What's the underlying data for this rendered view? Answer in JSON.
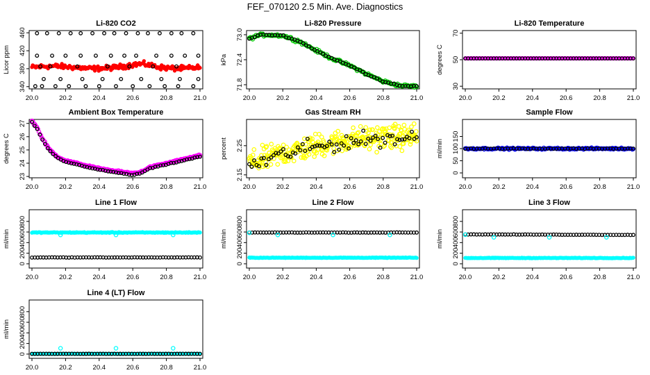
{
  "figure": {
    "title": "FEF_070120  2.5 Min. Ave. Diagnostics"
  },
  "colors": {
    "red": "#ff0000",
    "green": "#00cc00",
    "magenta": "#ff00ff",
    "yellow": "#ffff00",
    "blue": "#0000ff",
    "cyan": "#00ffff",
    "black": "#000000"
  },
  "chart_data": [
    {
      "id": "li820-co2",
      "type": "scatter",
      "title": "Li-820 CO2",
      "ylabel": "Licor ppm",
      "xlim": [
        20.0,
        21.0
      ],
      "ylim": [
        335,
        465
      ],
      "xticks": [
        "20.0",
        "20.2",
        "20.4",
        "20.6",
        "20.8",
        "21.0"
      ],
      "yticks": [
        {
          "v": 340,
          "label": "340"
        },
        {
          "v": 380,
          "label": "380"
        },
        {
          "v": 420,
          "label": "420"
        },
        {
          "v": 460,
          "label": "460"
        }
      ],
      "series": [
        {
          "name": "raw",
          "kind": "band",
          "color": "red",
          "y_start": 383,
          "y_end": 383,
          "wave": 2.5,
          "noise": 4,
          "n": 220,
          "size": 2.4,
          "fill": true,
          "extra_hump": {
            "center": 0.65,
            "width": 0.08,
            "height": 5
          }
        },
        {
          "name": "avg",
          "kind": "scatter",
          "color": "black",
          "size": 2.3,
          "fill": false,
          "x": [
            20.03,
            20.09,
            20.16,
            20.23,
            20.29,
            20.36,
            20.43,
            20.49,
            20.56,
            20.63,
            20.69,
            20.76,
            20.83,
            20.89,
            20.96,
            20.03,
            20.12,
            20.2,
            20.29,
            20.38,
            20.47,
            20.55,
            20.62,
            20.74,
            20.83,
            20.91,
            20.99,
            20.02,
            20.06,
            20.14,
            20.22,
            20.32,
            20.4,
            20.5,
            20.6,
            20.7,
            20.79,
            20.87,
            20.96,
            20.07,
            20.17,
            20.3,
            20.42,
            20.53,
            20.65,
            20.77,
            20.88,
            20.99,
            20.05,
            20.11,
            20.27,
            20.45,
            20.58,
            20.72,
            20.86
          ],
          "y": [
            459,
            459,
            459,
            459,
            459,
            459,
            459,
            459,
            459,
            459,
            459,
            459,
            459,
            459,
            459,
            409,
            409,
            409,
            409,
            409,
            409,
            409,
            409,
            409,
            409,
            409,
            409,
            341,
            341,
            341,
            341,
            341,
            341,
            341,
            341,
            341,
            341,
            341,
            341,
            357,
            357,
            357,
            357,
            357,
            357,
            357,
            357,
            357,
            385,
            385,
            385,
            385,
            385,
            385,
            385
          ]
        }
      ]
    },
    {
      "id": "li820-pressure",
      "type": "scatter",
      "title": "Li-820 Pressure",
      "ylabel": "kPa",
      "xlim": [
        20.0,
        21.0
      ],
      "ylim": [
        71.7,
        73.1
      ],
      "xticks": [
        "20.0",
        "20.2",
        "20.4",
        "20.6",
        "20.8",
        "21.0"
      ],
      "yticks": [
        {
          "v": 71.8,
          "label": "71.8"
        },
        {
          "v": 72.4,
          "label": "72.4"
        },
        {
          "v": 73.0,
          "label": "73.0"
        }
      ],
      "series": [
        {
          "name": "raw",
          "kind": "curve",
          "color": "green",
          "size": 2.6,
          "fill": false,
          "noise": 0.025,
          "n": 150,
          "kx": [
            20.0,
            20.05,
            20.1,
            20.2,
            20.3,
            20.4,
            20.5,
            20.6,
            20.7,
            20.8,
            20.9,
            21.0
          ],
          "ky": [
            72.9,
            72.98,
            73.0,
            72.98,
            72.84,
            72.62,
            72.42,
            72.26,
            72.06,
            71.88,
            71.78,
            71.76
          ]
        },
        {
          "name": "avg",
          "kind": "curve",
          "color": "black",
          "size": 2.3,
          "fill": false,
          "noise": 0.01,
          "n": 60,
          "kx": [
            20.0,
            20.05,
            20.1,
            20.2,
            20.3,
            20.4,
            20.5,
            20.6,
            20.7,
            20.8,
            20.9,
            21.0
          ],
          "ky": [
            72.9,
            72.98,
            73.0,
            72.98,
            72.84,
            72.62,
            72.42,
            72.26,
            72.06,
            71.88,
            71.78,
            71.76
          ]
        }
      ]
    },
    {
      "id": "li820-temperature",
      "type": "scatter",
      "title": "Li-820 Temperature",
      "ylabel": "degrees C",
      "xlim": [
        20.0,
        21.0
      ],
      "ylim": [
        28,
        72
      ],
      "xticks": [
        "20.0",
        "20.2",
        "20.4",
        "20.6",
        "20.8",
        "21.0"
      ],
      "yticks": [
        {
          "v": 30,
          "label": "30"
        },
        {
          "v": 50,
          "label": "50"
        },
        {
          "v": 70,
          "label": "70"
        }
      ],
      "series": [
        {
          "name": "raw",
          "kind": "band",
          "color": "magenta",
          "y_start": 51,
          "y_end": 51,
          "wave": 0,
          "noise": 0,
          "n": 150,
          "size": 2.4,
          "fill": false
        },
        {
          "name": "avg",
          "kind": "band",
          "color": "black",
          "y_start": 51,
          "y_end": 51,
          "wave": 0,
          "noise": 0,
          "n": 60,
          "size": 2.2,
          "fill": false
        }
      ]
    },
    {
      "id": "ambient-box-temperature",
      "type": "scatter",
      "title": "Ambient Box Temperature",
      "ylabel": "degrees C",
      "xlim": [
        20.0,
        21.0
      ],
      "ylim": [
        22.9,
        27.3
      ],
      "xticks": [
        "20.0",
        "20.2",
        "20.4",
        "20.6",
        "20.8",
        "21.0"
      ],
      "yticks": [
        {
          "v": 23,
          "label": "23"
        },
        {
          "v": 24,
          "label": "24"
        },
        {
          "v": 25,
          "label": "25"
        },
        {
          "v": 26,
          "label": "26"
        },
        {
          "v": 27,
          "label": "27"
        }
      ],
      "series": [
        {
          "name": "raw",
          "kind": "curve",
          "color": "magenta",
          "size": 2.6,
          "fill": false,
          "noise": 0.04,
          "n": 170,
          "kx": [
            20.0,
            20.03,
            20.06,
            20.1,
            20.15,
            20.2,
            20.3,
            20.4,
            20.5,
            20.6,
            20.65,
            20.7,
            20.8,
            20.9,
            21.0
          ],
          "ky": [
            27.2,
            26.7,
            25.9,
            25.1,
            24.5,
            24.2,
            23.9,
            23.6,
            23.4,
            23.25,
            23.35,
            23.7,
            24.0,
            24.3,
            24.6
          ]
        },
        {
          "name": "avg",
          "kind": "curve",
          "color": "black",
          "size": 2.3,
          "fill": false,
          "noise": 0.02,
          "n": 65,
          "kx": [
            20.0,
            20.03,
            20.06,
            20.1,
            20.15,
            20.2,
            20.3,
            20.4,
            20.5,
            20.6,
            20.65,
            20.7,
            20.8,
            20.9,
            21.0
          ],
          "ky": [
            27.1,
            26.6,
            25.8,
            25.0,
            24.4,
            24.1,
            23.8,
            23.5,
            23.3,
            23.1,
            23.25,
            23.6,
            23.9,
            24.2,
            24.5
          ]
        }
      ]
    },
    {
      "id": "gas-stream-rh",
      "type": "scatter",
      "title": "Gas Stream RH",
      "ylabel": "percent",
      "xlim": [
        20.0,
        21.0
      ],
      "ylim": [
        2.14,
        2.34
      ],
      "xticks": [
        "20.0",
        "20.2",
        "20.4",
        "20.6",
        "20.8",
        "21.0"
      ],
      "yticks": [
        {
          "v": 2.15,
          "label": "2.15"
        },
        {
          "v": 2.25,
          "label": "2.25"
        }
      ],
      "series": [
        {
          "name": "raw",
          "kind": "curve",
          "color": "yellow",
          "size": 2.7,
          "fill": false,
          "noise": 0.03,
          "n": 320,
          "kx": [
            20.0,
            20.1,
            20.2,
            20.3,
            20.4,
            20.5,
            20.6,
            20.7,
            20.8,
            20.9,
            21.0
          ],
          "ky": [
            2.19,
            2.205,
            2.225,
            2.235,
            2.25,
            2.26,
            2.27,
            2.275,
            2.28,
            2.28,
            2.285
          ]
        },
        {
          "name": "avg",
          "kind": "curve",
          "color": "black",
          "size": 2.3,
          "fill": false,
          "noise": 0.02,
          "n": 70,
          "kx": [
            20.0,
            20.1,
            20.2,
            20.3,
            20.4,
            20.5,
            20.6,
            20.7,
            20.8,
            20.9,
            21.0
          ],
          "ky": [
            2.18,
            2.2,
            2.22,
            2.235,
            2.245,
            2.255,
            2.265,
            2.27,
            2.275,
            2.275,
            2.28
          ]
        }
      ]
    },
    {
      "id": "sample-flow",
      "type": "scatter",
      "title": "Sample Flow",
      "ylabel": "ml/min",
      "xlim": [
        20.0,
        21.0
      ],
      "ylim": [
        -20,
        220
      ],
      "xticks": [
        "20.0",
        "20.2",
        "20.4",
        "20.6",
        "20.8",
        "21.0"
      ],
      "yticks": [
        {
          "v": 0,
          "label": "0"
        },
        {
          "v": 50,
          "label": "50"
        },
        {
          "v": 100,
          "label": "100"
        },
        {
          "v": 150,
          "label": "150"
        }
      ],
      "series": [
        {
          "name": "raw",
          "kind": "band",
          "color": "blue",
          "y_start": 100,
          "y_end": 100,
          "wave": 0,
          "noise": 2.5,
          "n": 170,
          "size": 2.5,
          "fill": false
        },
        {
          "name": "avg",
          "kind": "band",
          "color": "black",
          "y_start": 100,
          "y_end": 100,
          "wave": 0,
          "noise": 1,
          "n": 60,
          "size": 2.2,
          "fill": false
        }
      ]
    },
    {
      "id": "line1-flow",
      "type": "scatter",
      "title": "Line 1 Flow",
      "ylabel": "ml/min",
      "xlim": [
        20.0,
        21.0
      ],
      "ylim": [
        -80,
        1020
      ],
      "xticks": [
        "20.0",
        "20.2",
        "20.4",
        "20.6",
        "20.8",
        "21.0"
      ],
      "yticks": [
        {
          "v": 0,
          "label": "0"
        },
        {
          "v": 200,
          "label": "200"
        },
        {
          "v": 400,
          "label": "400"
        },
        {
          "v": 600,
          "label": "600"
        },
        {
          "v": 800,
          "label": "800"
        }
      ],
      "series": [
        {
          "name": "raw-high",
          "kind": "band",
          "color": "cyan",
          "y_start": 590,
          "y_end": 590,
          "wave": 0,
          "noise": 6,
          "n": 200,
          "size": 2.5,
          "fill": true
        },
        {
          "name": "dips",
          "kind": "scatter",
          "color": "cyan",
          "size": 2.6,
          "fill": false,
          "x": [
            20.17,
            20.5,
            20.84
          ],
          "y": [
            545,
            545,
            545
          ]
        },
        {
          "name": "avg-low",
          "kind": "band",
          "color": "black",
          "y_start": 120,
          "y_end": 120,
          "wave": 0,
          "noise": 2,
          "n": 60,
          "size": 2.3,
          "fill": false
        }
      ]
    },
    {
      "id": "line2-flow",
      "type": "scatter",
      "title": "Line 2 Flow",
      "ylabel": "ml/min",
      "xlim": [
        20.0,
        21.0
      ],
      "ylim": [
        -80,
        1020
      ],
      "xticks": [
        "20.0",
        "20.2",
        "20.4",
        "20.6",
        "20.8",
        "21.0"
      ],
      "yticks": [
        {
          "v": 0,
          "label": "0"
        },
        {
          "v": 200,
          "label": "200"
        },
        {
          "v": 400,
          "label": "400"
        },
        {
          "v": 600,
          "label": "600"
        },
        {
          "v": 800,
          "label": "800"
        }
      ],
      "series": [
        {
          "name": "raw-low",
          "kind": "band",
          "color": "cyan",
          "y_start": 115,
          "y_end": 115,
          "wave": 0,
          "noise": 4,
          "n": 200,
          "size": 2.5,
          "fill": true
        },
        {
          "name": "avg-high",
          "kind": "band",
          "color": "black",
          "y_start": 590,
          "y_end": 590,
          "wave": 0,
          "noise": 2,
          "n": 60,
          "size": 2.3,
          "fill": false
        },
        {
          "name": "dips",
          "kind": "scatter",
          "color": "cyan",
          "size": 2.6,
          "fill": false,
          "x": [
            20.0,
            20.17,
            20.5,
            20.84
          ],
          "y": [
            585,
            545,
            545,
            545
          ]
        }
      ]
    },
    {
      "id": "line3-flow",
      "type": "scatter",
      "title": "Line 3 Flow",
      "ylabel": "ml/min",
      "xlim": [
        20.0,
        21.0
      ],
      "ylim": [
        -80,
        1020
      ],
      "xticks": [
        "20.0",
        "20.2",
        "20.4",
        "20.6",
        "20.8",
        "21.0"
      ],
      "yticks": [
        {
          "v": 0,
          "label": "0"
        },
        {
          "v": 200,
          "label": "200"
        },
        {
          "v": 400,
          "label": "400"
        },
        {
          "v": 600,
          "label": "600"
        },
        {
          "v": 800,
          "label": "800"
        }
      ],
      "series": [
        {
          "name": "raw-low",
          "kind": "band",
          "color": "cyan",
          "y_start": 110,
          "y_end": 110,
          "wave": 0,
          "noise": 4,
          "n": 200,
          "size": 2.5,
          "fill": true
        },
        {
          "name": "avg-high",
          "kind": "band",
          "color": "black",
          "y_start": 555,
          "y_end": 545,
          "wave": 0,
          "noise": 2,
          "n": 60,
          "size": 2.3,
          "fill": false
        },
        {
          "name": "dips",
          "kind": "scatter",
          "color": "cyan",
          "size": 2.6,
          "fill": false,
          "x": [
            20.0,
            20.17,
            20.5,
            20.84
          ],
          "y": [
            550,
            500,
            500,
            500
          ]
        }
      ]
    },
    {
      "id": "line4-flow",
      "type": "scatter",
      "title": "Line 4 (LT) Flow",
      "ylabel": "ml/min",
      "xlim": [
        20.0,
        21.0
      ],
      "ylim": [
        -80,
        1020
      ],
      "xticks": [
        "20.0",
        "20.2",
        "20.4",
        "20.6",
        "20.8",
        "21.0"
      ],
      "yticks": [
        {
          "v": 0,
          "label": "0"
        },
        {
          "v": 200,
          "label": "200"
        },
        {
          "v": 400,
          "label": "400"
        },
        {
          "v": 600,
          "label": "600"
        },
        {
          "v": 800,
          "label": "800"
        }
      ],
      "series": [
        {
          "name": "raw",
          "kind": "band",
          "color": "cyan",
          "y_start": 5,
          "y_end": 5,
          "wave": 0,
          "noise": 2,
          "n": 200,
          "size": 2.5,
          "fill": true
        },
        {
          "name": "spikes",
          "kind": "scatter",
          "color": "cyan",
          "size": 2.6,
          "fill": false,
          "x": [
            20.17,
            20.5,
            20.84
          ],
          "y": [
            110,
            110,
            110
          ]
        },
        {
          "name": "avg",
          "kind": "band",
          "color": "black",
          "y_start": 5,
          "y_end": 5,
          "wave": 0,
          "noise": 1,
          "n": 60,
          "size": 2.3,
          "fill": false
        }
      ]
    }
  ]
}
